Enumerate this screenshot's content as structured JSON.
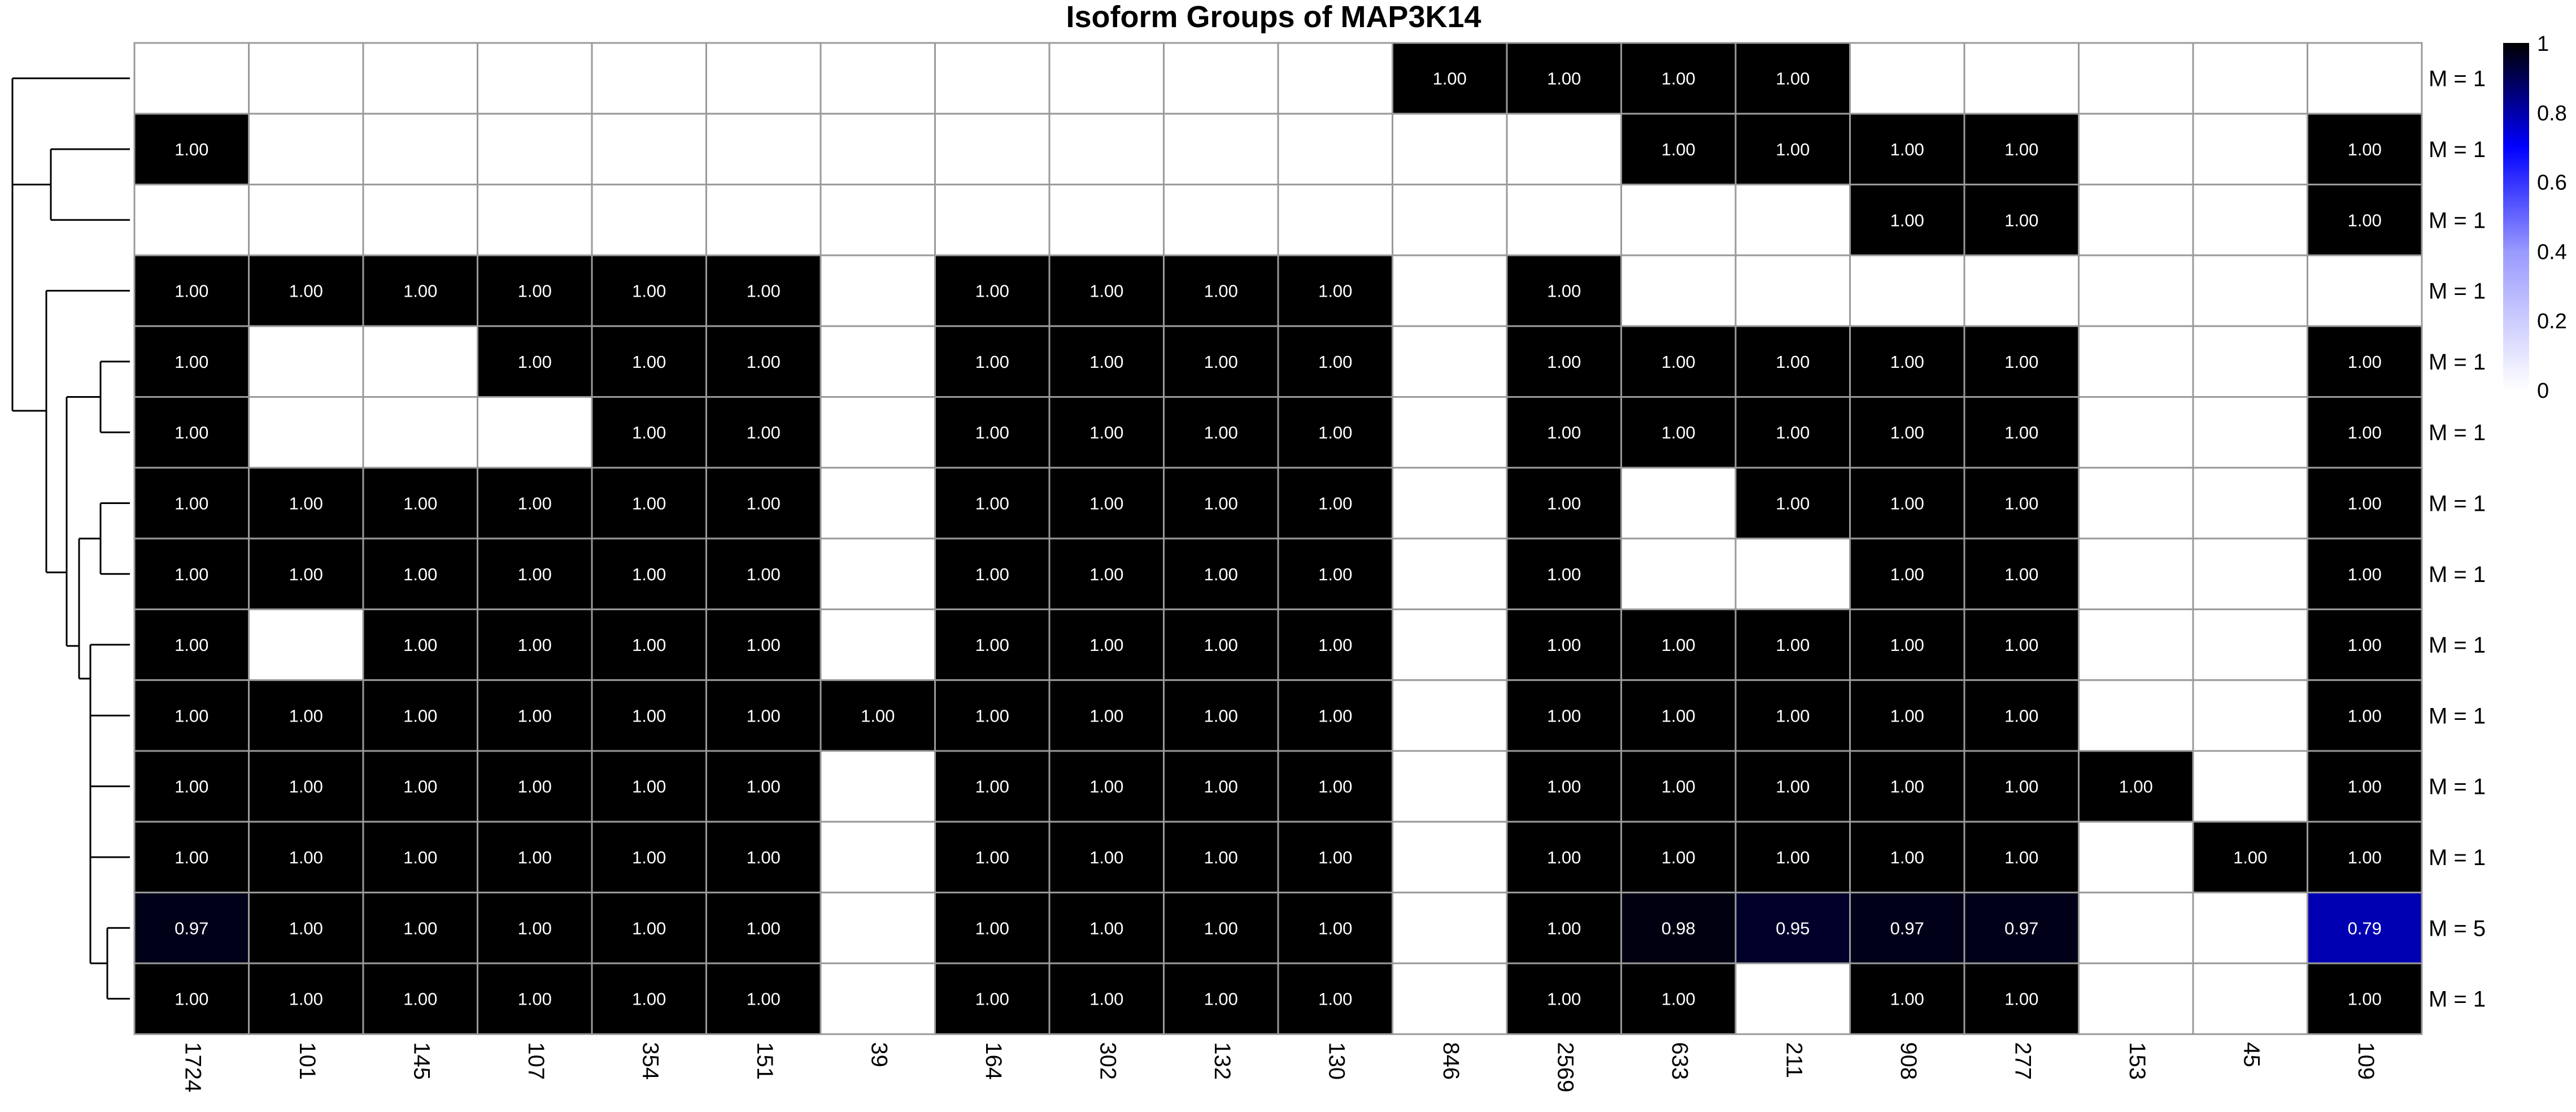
{
  "chart_data": {
    "type": "heatmap",
    "title": "Isoform Groups of MAP3K14",
    "columns": [
      "1724",
      "101",
      "145",
      "107",
      "354",
      "151",
      "39",
      "164",
      "302",
      "132",
      "130",
      "846",
      "2569",
      "633",
      "211",
      "908",
      "277",
      "153",
      "45",
      "109"
    ],
    "row_labels": [
      "M = 1",
      "M = 1",
      "M = 1",
      "M = 1",
      "M = 1",
      "M = 1",
      "M = 1",
      "M = 1",
      "M = 1",
      "M = 1",
      "M = 1",
      "M = 1",
      "M = 5",
      "M = 1"
    ],
    "values": [
      [
        null,
        null,
        null,
        null,
        null,
        null,
        null,
        null,
        null,
        null,
        null,
        1.0,
        1.0,
        1.0,
        1.0,
        null,
        null,
        null,
        null,
        null
      ],
      [
        1.0,
        null,
        null,
        null,
        null,
        null,
        null,
        null,
        null,
        null,
        null,
        null,
        null,
        1.0,
        1.0,
        1.0,
        1.0,
        null,
        null,
        1.0
      ],
      [
        null,
        null,
        null,
        null,
        null,
        null,
        null,
        null,
        null,
        null,
        null,
        null,
        null,
        null,
        null,
        1.0,
        1.0,
        null,
        null,
        1.0
      ],
      [
        1.0,
        1.0,
        1.0,
        1.0,
        1.0,
        1.0,
        null,
        1.0,
        1.0,
        1.0,
        1.0,
        null,
        1.0,
        null,
        null,
        null,
        null,
        null,
        null,
        null
      ],
      [
        1.0,
        null,
        null,
        1.0,
        1.0,
        1.0,
        null,
        1.0,
        1.0,
        1.0,
        1.0,
        null,
        1.0,
        1.0,
        1.0,
        1.0,
        1.0,
        null,
        null,
        1.0
      ],
      [
        1.0,
        null,
        null,
        null,
        1.0,
        1.0,
        null,
        1.0,
        1.0,
        1.0,
        1.0,
        null,
        1.0,
        1.0,
        1.0,
        1.0,
        1.0,
        null,
        null,
        1.0
      ],
      [
        1.0,
        1.0,
        1.0,
        1.0,
        1.0,
        1.0,
        null,
        1.0,
        1.0,
        1.0,
        1.0,
        null,
        1.0,
        null,
        1.0,
        1.0,
        1.0,
        null,
        null,
        1.0
      ],
      [
        1.0,
        1.0,
        1.0,
        1.0,
        1.0,
        1.0,
        null,
        1.0,
        1.0,
        1.0,
        1.0,
        null,
        1.0,
        null,
        null,
        1.0,
        1.0,
        null,
        null,
        1.0
      ],
      [
        1.0,
        null,
        1.0,
        1.0,
        1.0,
        1.0,
        null,
        1.0,
        1.0,
        1.0,
        1.0,
        null,
        1.0,
        1.0,
        1.0,
        1.0,
        1.0,
        null,
        null,
        1.0
      ],
      [
        1.0,
        1.0,
        1.0,
        1.0,
        1.0,
        1.0,
        1.0,
        1.0,
        1.0,
        1.0,
        1.0,
        null,
        1.0,
        1.0,
        1.0,
        1.0,
        1.0,
        null,
        null,
        1.0
      ],
      [
        1.0,
        1.0,
        1.0,
        1.0,
        1.0,
        1.0,
        null,
        1.0,
        1.0,
        1.0,
        1.0,
        null,
        1.0,
        1.0,
        1.0,
        1.0,
        1.0,
        1.0,
        null,
        1.0
      ],
      [
        1.0,
        1.0,
        1.0,
        1.0,
        1.0,
        1.0,
        null,
        1.0,
        1.0,
        1.0,
        1.0,
        null,
        1.0,
        1.0,
        1.0,
        1.0,
        1.0,
        null,
        1.0,
        1.0
      ],
      [
        0.97,
        1.0,
        1.0,
        1.0,
        1.0,
        1.0,
        null,
        1.0,
        1.0,
        1.0,
        1.0,
        null,
        1.0,
        0.98,
        0.95,
        0.97,
        0.97,
        null,
        null,
        0.79
      ],
      [
        1.0,
        1.0,
        1.0,
        1.0,
        1.0,
        1.0,
        null,
        1.0,
        1.0,
        1.0,
        1.0,
        null,
        1.0,
        1.0,
        null,
        1.0,
        1.0,
        null,
        null,
        1.0
      ]
    ],
    "colorbar": {
      "ticks": [
        "1",
        "0.8",
        "0.6",
        "0.4",
        "0.2",
        "0"
      ],
      "range": [
        0,
        1
      ],
      "colors": {
        "low": "#ffffff",
        "mid": "#0000ff",
        "high": "#000000"
      }
    },
    "dendrogram": {
      "leaf_order": [
        0,
        1,
        2,
        3,
        4,
        5,
        6,
        7,
        8,
        9,
        10,
        11,
        12,
        13
      ]
    },
    "grid": true,
    "legend_position": "right"
  }
}
